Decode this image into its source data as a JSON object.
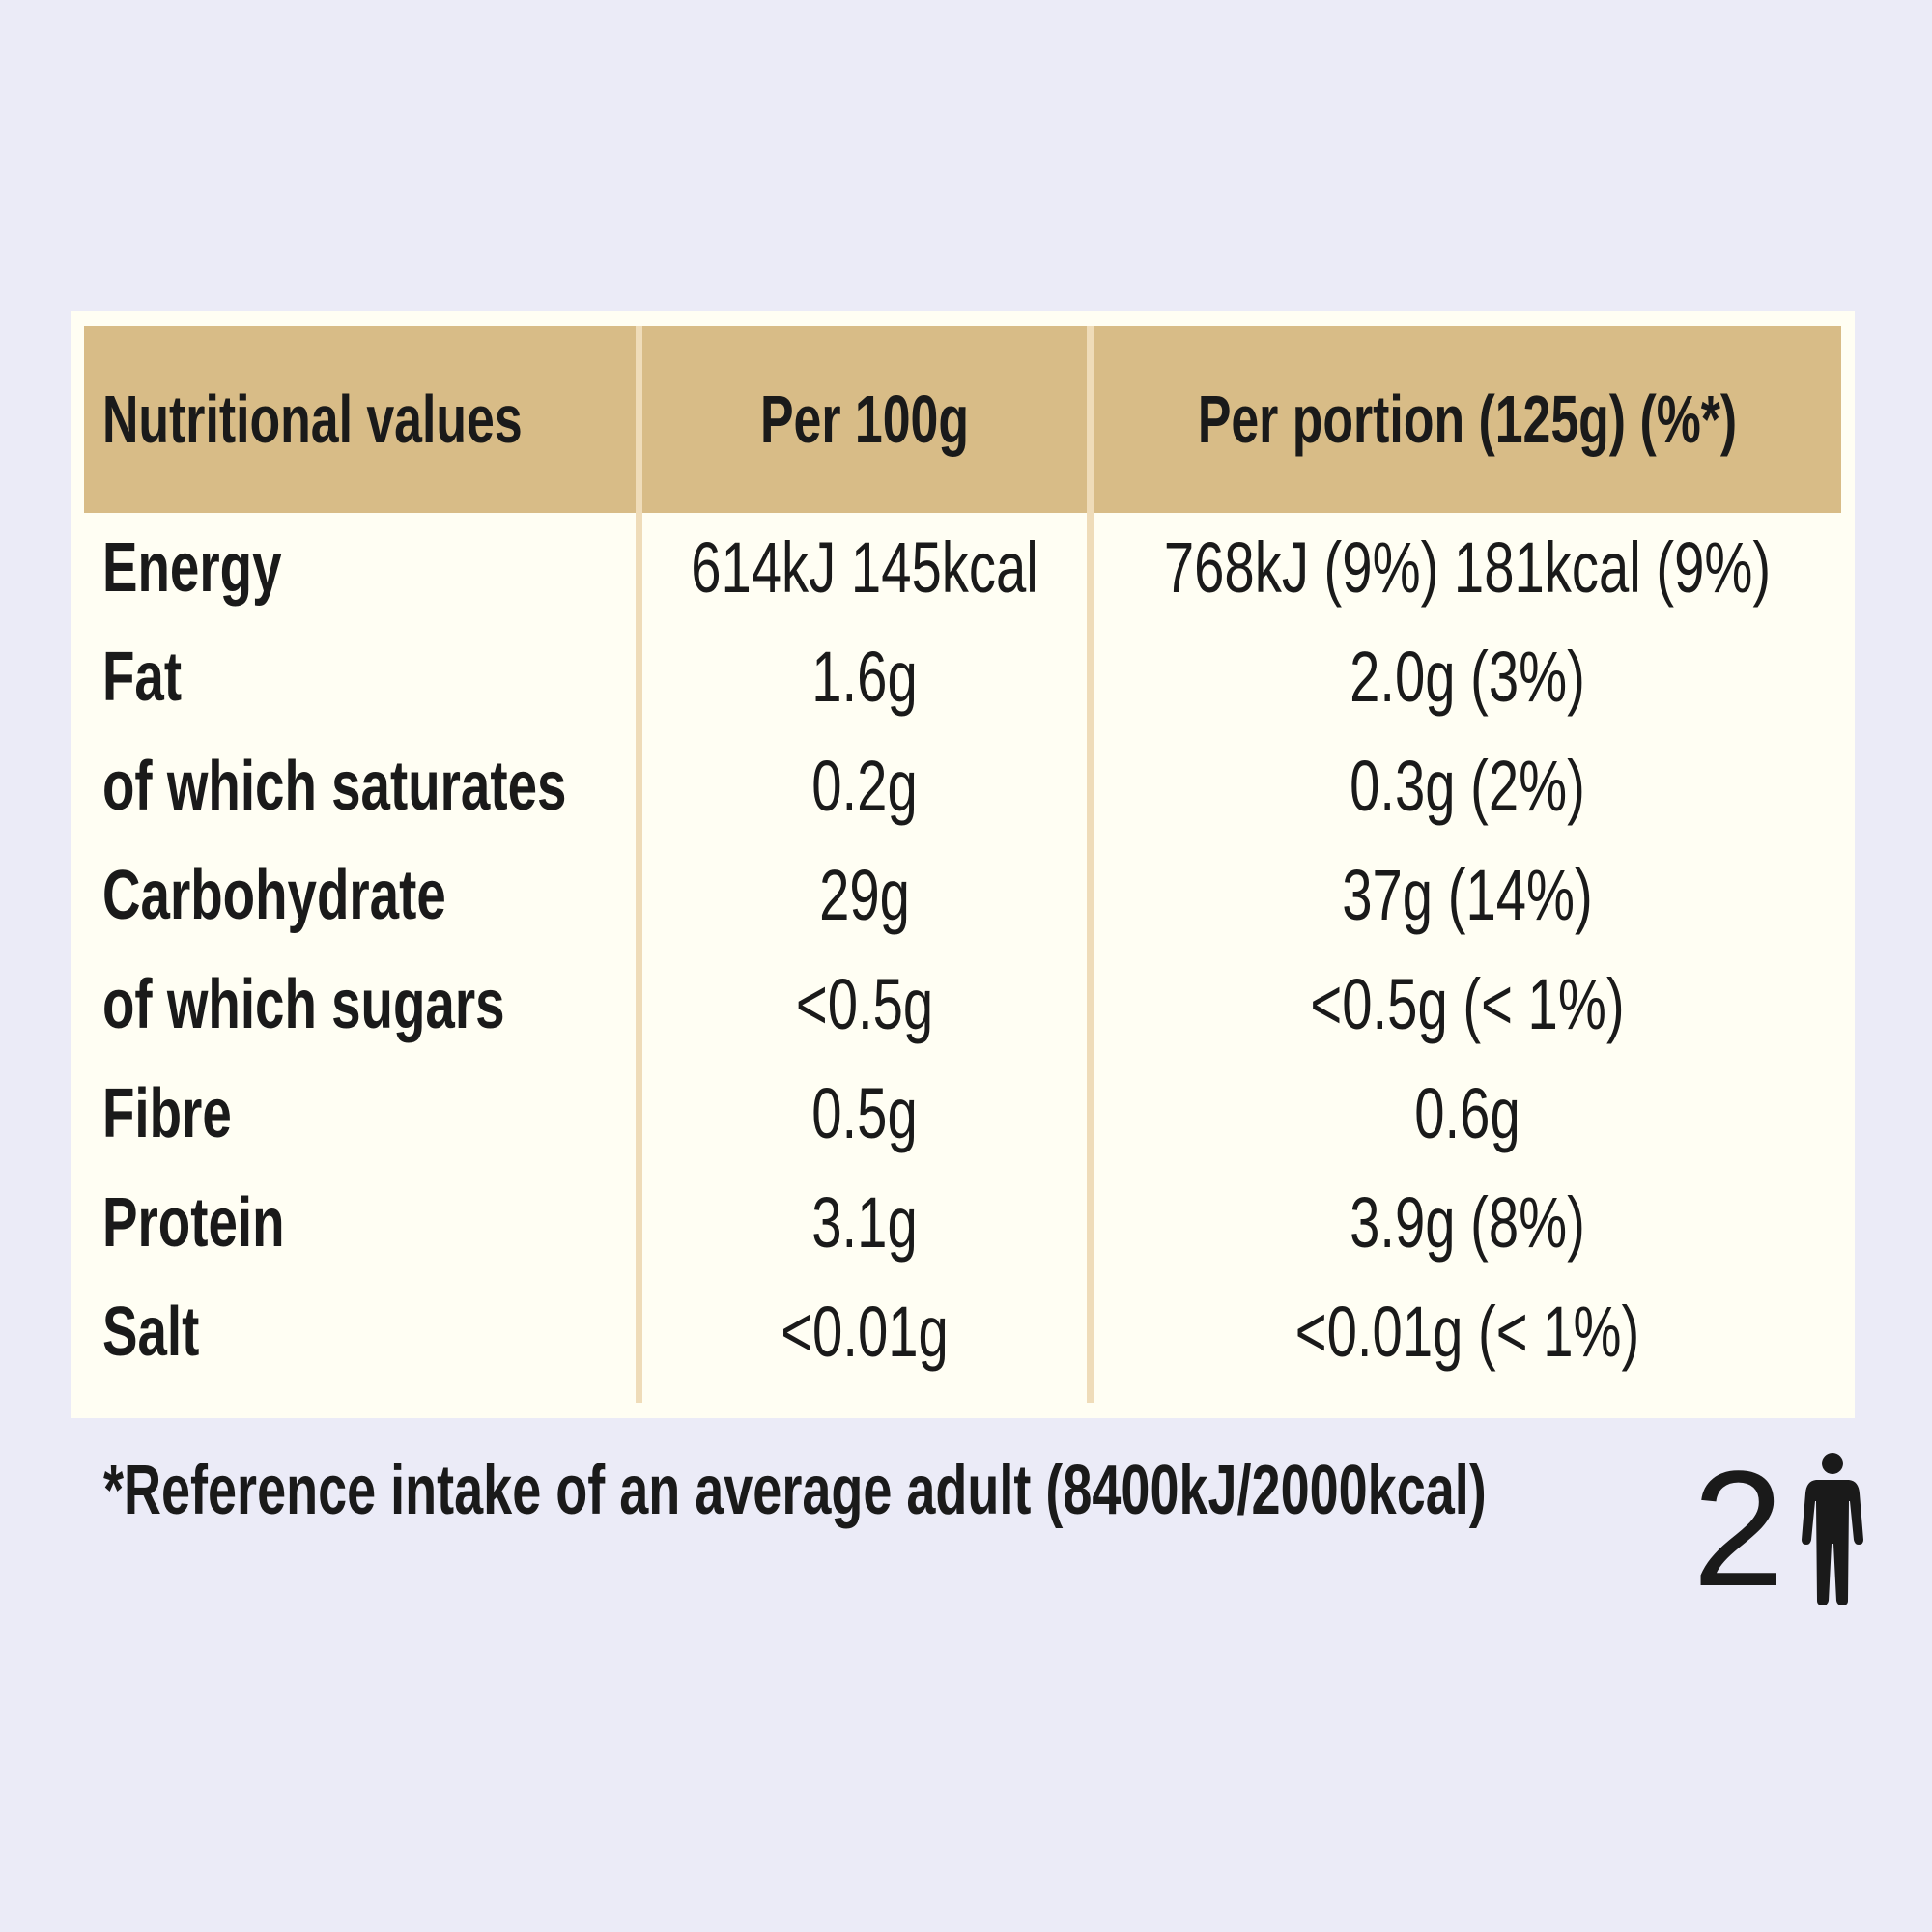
{
  "table": {
    "headers": {
      "nutrient": "Nutritional values",
      "per_100g": "Per 100g",
      "per_portion": "Per portion (125g) (%*)"
    },
    "rows": [
      {
        "label": "Energy",
        "per_100g": "614kJ 145kcal",
        "per_portion": "768kJ (9%) 181kcal (9%)"
      },
      {
        "label": "Fat",
        "per_100g": "1.6g",
        "per_portion": "2.0g (3%)"
      },
      {
        "label": "of which saturates",
        "per_100g": "0.2g",
        "per_portion": "0.3g (2%)"
      },
      {
        "label": "Carbohydrate",
        "per_100g": "29g",
        "per_portion": "37g (14%)"
      },
      {
        "label": "of which sugars",
        "per_100g": "<0.5g",
        "per_portion": "<0.5g (< 1%)"
      },
      {
        "label": "Fibre",
        "per_100g": "0.5g",
        "per_portion": "0.6g"
      },
      {
        "label": "Protein",
        "per_100g": "3.1g",
        "per_portion": "3.9g (8%)"
      },
      {
        "label": "Salt",
        "per_100g": "<0.01g",
        "per_portion": "<0.01g (< 1%)"
      }
    ]
  },
  "footnote": "*Reference intake of an average adult (8400kJ/2000kcal)",
  "portions": {
    "count": "2",
    "icon": "person-icon"
  },
  "colors": {
    "background": "#ebebf7",
    "header": "#d8bc87",
    "table_body": "#fffef3",
    "column_rule": "#efdcb9",
    "text": "#1a1a1a"
  }
}
